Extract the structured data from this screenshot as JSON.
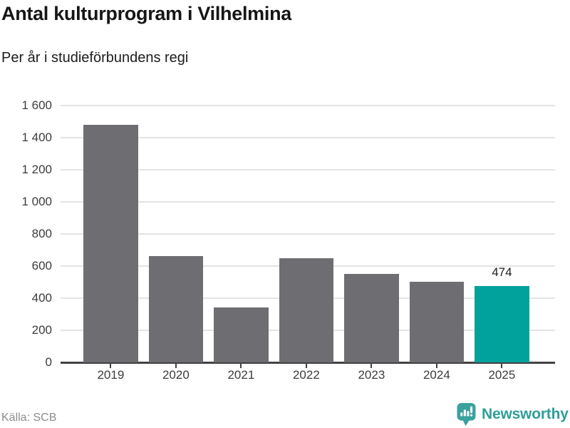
{
  "header": {
    "title": "Antal kulturprogram i Vilhelmina",
    "subtitle": "Per år i studieförbundens regi"
  },
  "footer": {
    "source": "Källa: SCB",
    "brand": "Newsworthy"
  },
  "colors": {
    "bar": "#6e6e72",
    "highlight": "#00a29b",
    "grid": "#e4e4e4",
    "axis": "#424242",
    "tick_label": "#3c3c3c",
    "value_label": "#1d1d1d",
    "source_text": "#8d8d8d",
    "brand_teal": "#3aa19d",
    "brand_text": "#2f9e99"
  },
  "chart_data": {
    "type": "bar",
    "title": "Antal kulturprogram i Vilhelmina",
    "subtitle": "Per år i studieförbundens regi",
    "categories": [
      "2019",
      "2020",
      "2021",
      "2022",
      "2023",
      "2024",
      "2025"
    ],
    "values": [
      1480,
      663,
      341,
      648,
      553,
      503,
      474
    ],
    "highlight_index": 6,
    "value_labels": {
      "6": "474"
    },
    "xlabel": "",
    "ylabel": "",
    "ylim": [
      0,
      1600
    ],
    "ytick_step": 200,
    "ytick_labels": [
      "0",
      "200",
      "400",
      "600",
      "800",
      "1 000",
      "1 200",
      "1 400",
      "1 600"
    ],
    "grid": true,
    "legend": false,
    "source": "Källa: SCB"
  }
}
